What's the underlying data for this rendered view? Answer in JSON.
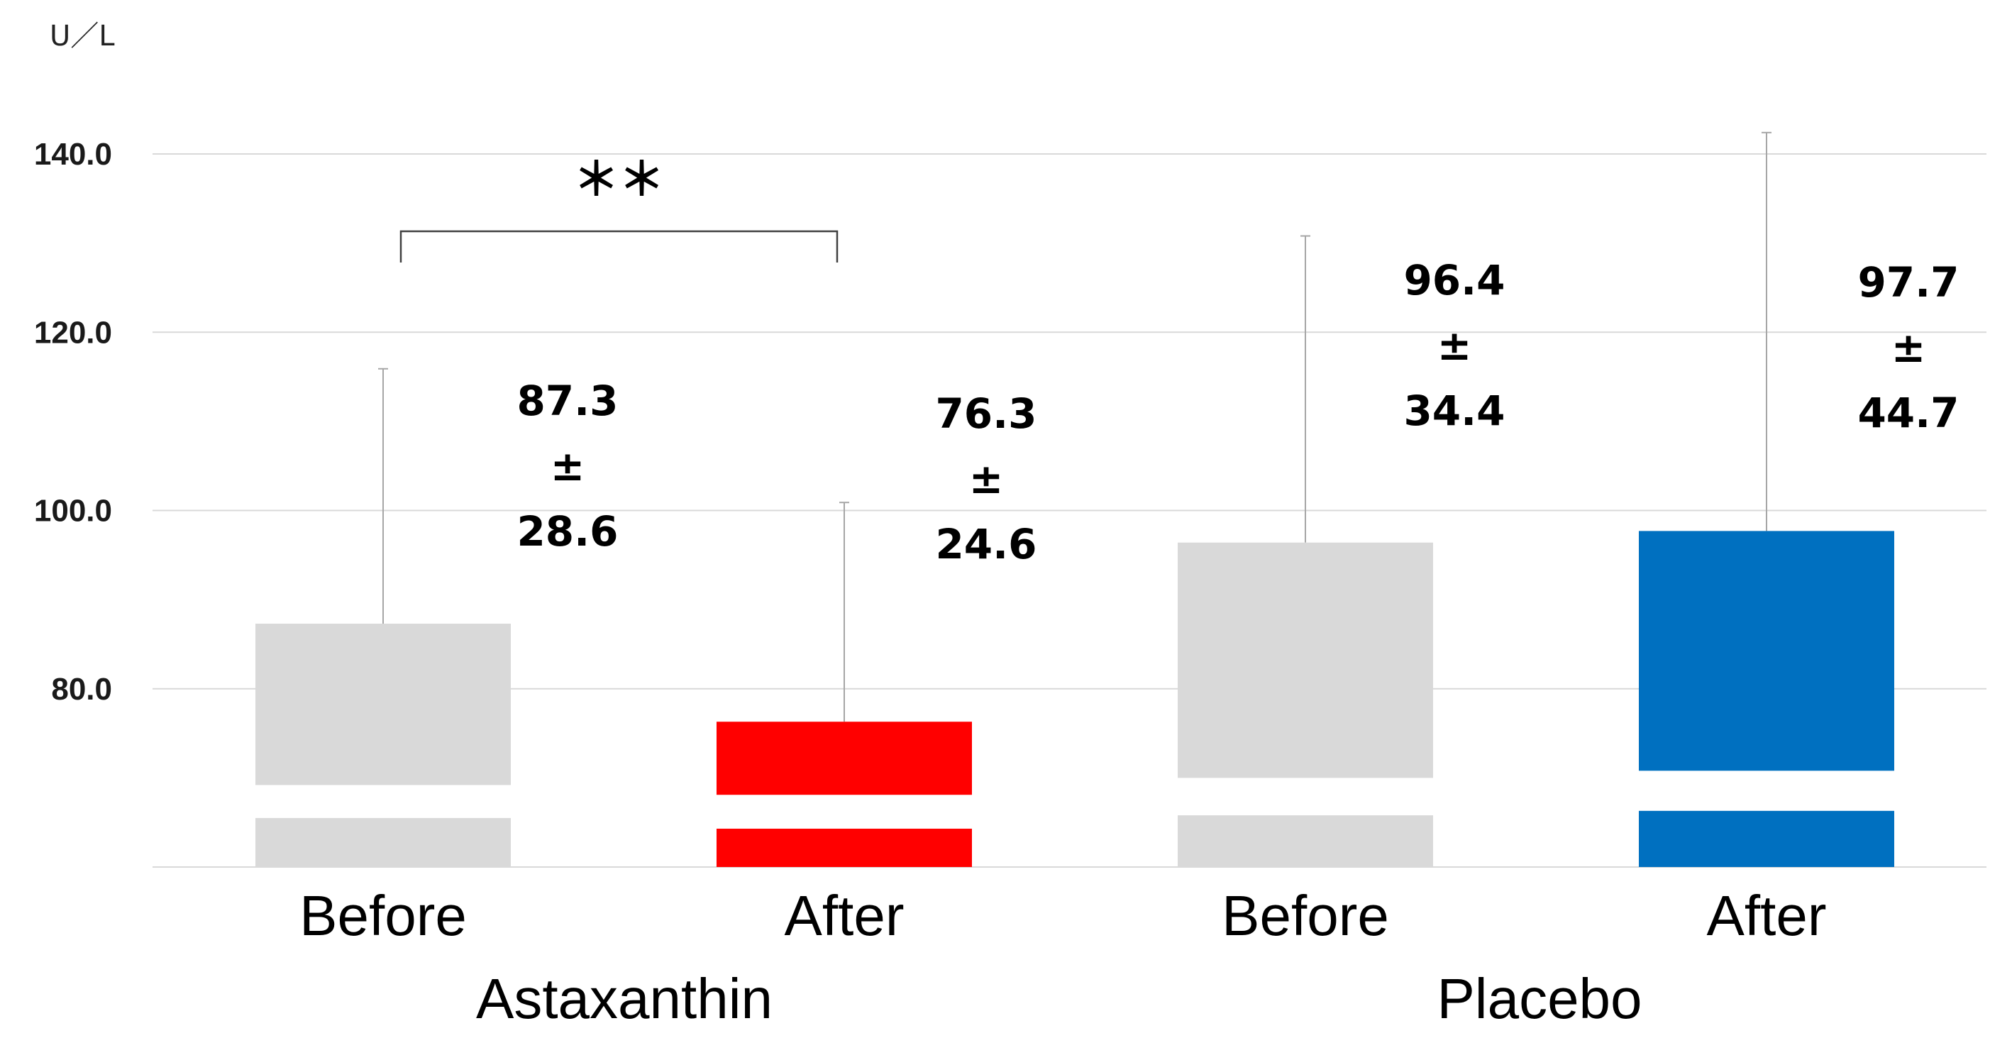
{
  "chart_data": {
    "type": "bar",
    "unit_label": "U／L",
    "ylim": [
      60,
      140
    ],
    "y_ticks": [
      "80.0",
      "100.0",
      "120.0",
      "140.0"
    ],
    "grid": true,
    "legend": "none",
    "groups": [
      {
        "name": "Astaxanthin",
        "bars": [
          {
            "category": "Before",
            "mean": 87.3,
            "pm": "±",
            "sd": 28.6,
            "whisker_top": 115.9,
            "band": [
              65.5,
              69.2
            ],
            "color": "#d9d9d9",
            "mean_text": "87.3",
            "sd_text": "28.6"
          },
          {
            "category": "After",
            "mean": 76.3,
            "pm": "±",
            "sd": 24.6,
            "whisker_top": 100.9,
            "band": [
              64.3,
              68.1
            ],
            "color": "#ff0000",
            "mean_text": "76.3",
            "sd_text": "24.6"
          }
        ],
        "significance": "＊＊"
      },
      {
        "name": "Placebo",
        "bars": [
          {
            "category": "Before",
            "mean": 96.4,
            "pm": "±",
            "sd": 34.4,
            "whisker_top": 130.8,
            "band": [
              65.8,
              70.0
            ],
            "color": "#d9d9d9",
            "mean_text": "96.4",
            "sd_text": "34.4"
          },
          {
            "category": "After",
            "mean": 97.7,
            "pm": "±",
            "sd": 44.7,
            "whisker_top": 142.4,
            "band": [
              66.3,
              70.8
            ],
            "color": "#0070c0",
            "mean_text": "97.7",
            "sd_text": "44.7"
          }
        ]
      }
    ]
  }
}
